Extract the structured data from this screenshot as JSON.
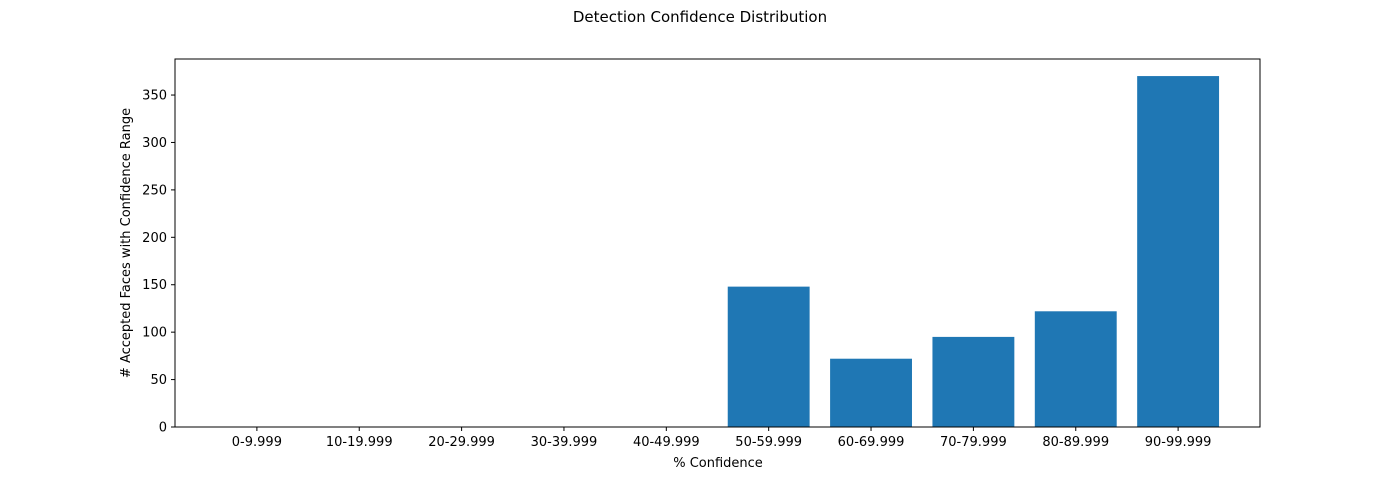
{
  "chart_data": {
    "type": "bar",
    "title": "Detection Confidence Distribution",
    "xlabel": "% Confidence",
    "ylabel": "# Accepted Faces with Confidence Range",
    "categories": [
      "0-9.999",
      "10-19.999",
      "20-29.999",
      "30-39.999",
      "40-49.999",
      "50-59.999",
      "60-69.999",
      "70-79.999",
      "80-89.999",
      "90-99.999"
    ],
    "values": [
      0,
      0,
      0,
      0,
      0,
      148,
      72,
      95,
      122,
      370
    ],
    "ylim": [
      0,
      388
    ],
    "yticks": [
      0,
      50,
      100,
      150,
      200,
      250,
      300,
      350
    ],
    "bar_color": "#1f77b4",
    "grid": false,
    "legend": "none"
  }
}
